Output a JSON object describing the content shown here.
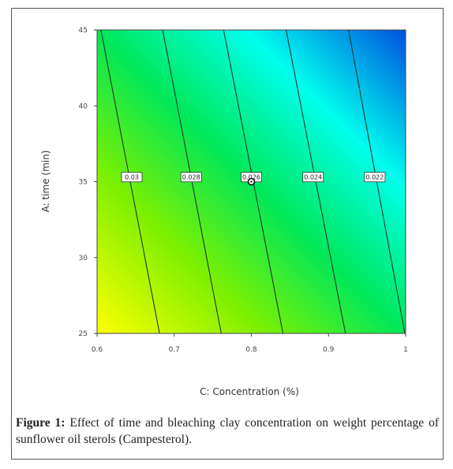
{
  "chart_data": {
    "type": "contour",
    "xlabel": "C: Concentration (%)",
    "ylabel": "A: time (min)",
    "xlim": [
      0.6,
      1.0
    ],
    "ylim": [
      25,
      45
    ],
    "x_ticks": [
      "0.6",
      "0.7",
      "0.8",
      "0.9",
      "1"
    ],
    "y_ticks": [
      "25",
      "30",
      "35",
      "40",
      "45"
    ],
    "colormap": [
      "#ffff00",
      "#7cf000",
      "#00e85a",
      "#00ffee",
      "#0050e0"
    ],
    "contours": [
      {
        "label": "0.03",
        "bottom_x": 0.681,
        "top_x": 0.605,
        "label_x": 0.645
      },
      {
        "label": "0.028",
        "bottom_x": 0.761,
        "top_x": 0.685,
        "label_x": 0.722
      },
      {
        "label": "0.026",
        "bottom_x": 0.841,
        "top_x": 0.764,
        "label_x": 0.8
      },
      {
        "label": "0.024",
        "bottom_x": 0.922,
        "top_x": 0.845,
        "label_x": 0.88
      },
      {
        "label": "0.022",
        "bottom_x": 0.999,
        "top_x": 0.926,
        "label_x": 0.96
      }
    ],
    "label_y": 35.3,
    "design_point": {
      "x": 0.8,
      "y": 35
    }
  },
  "caption": {
    "prefix": "Figure 1:",
    "text": " Effect of time and bleaching clay concentration on weight percentage of sunflower oil sterols (Campesterol)."
  }
}
